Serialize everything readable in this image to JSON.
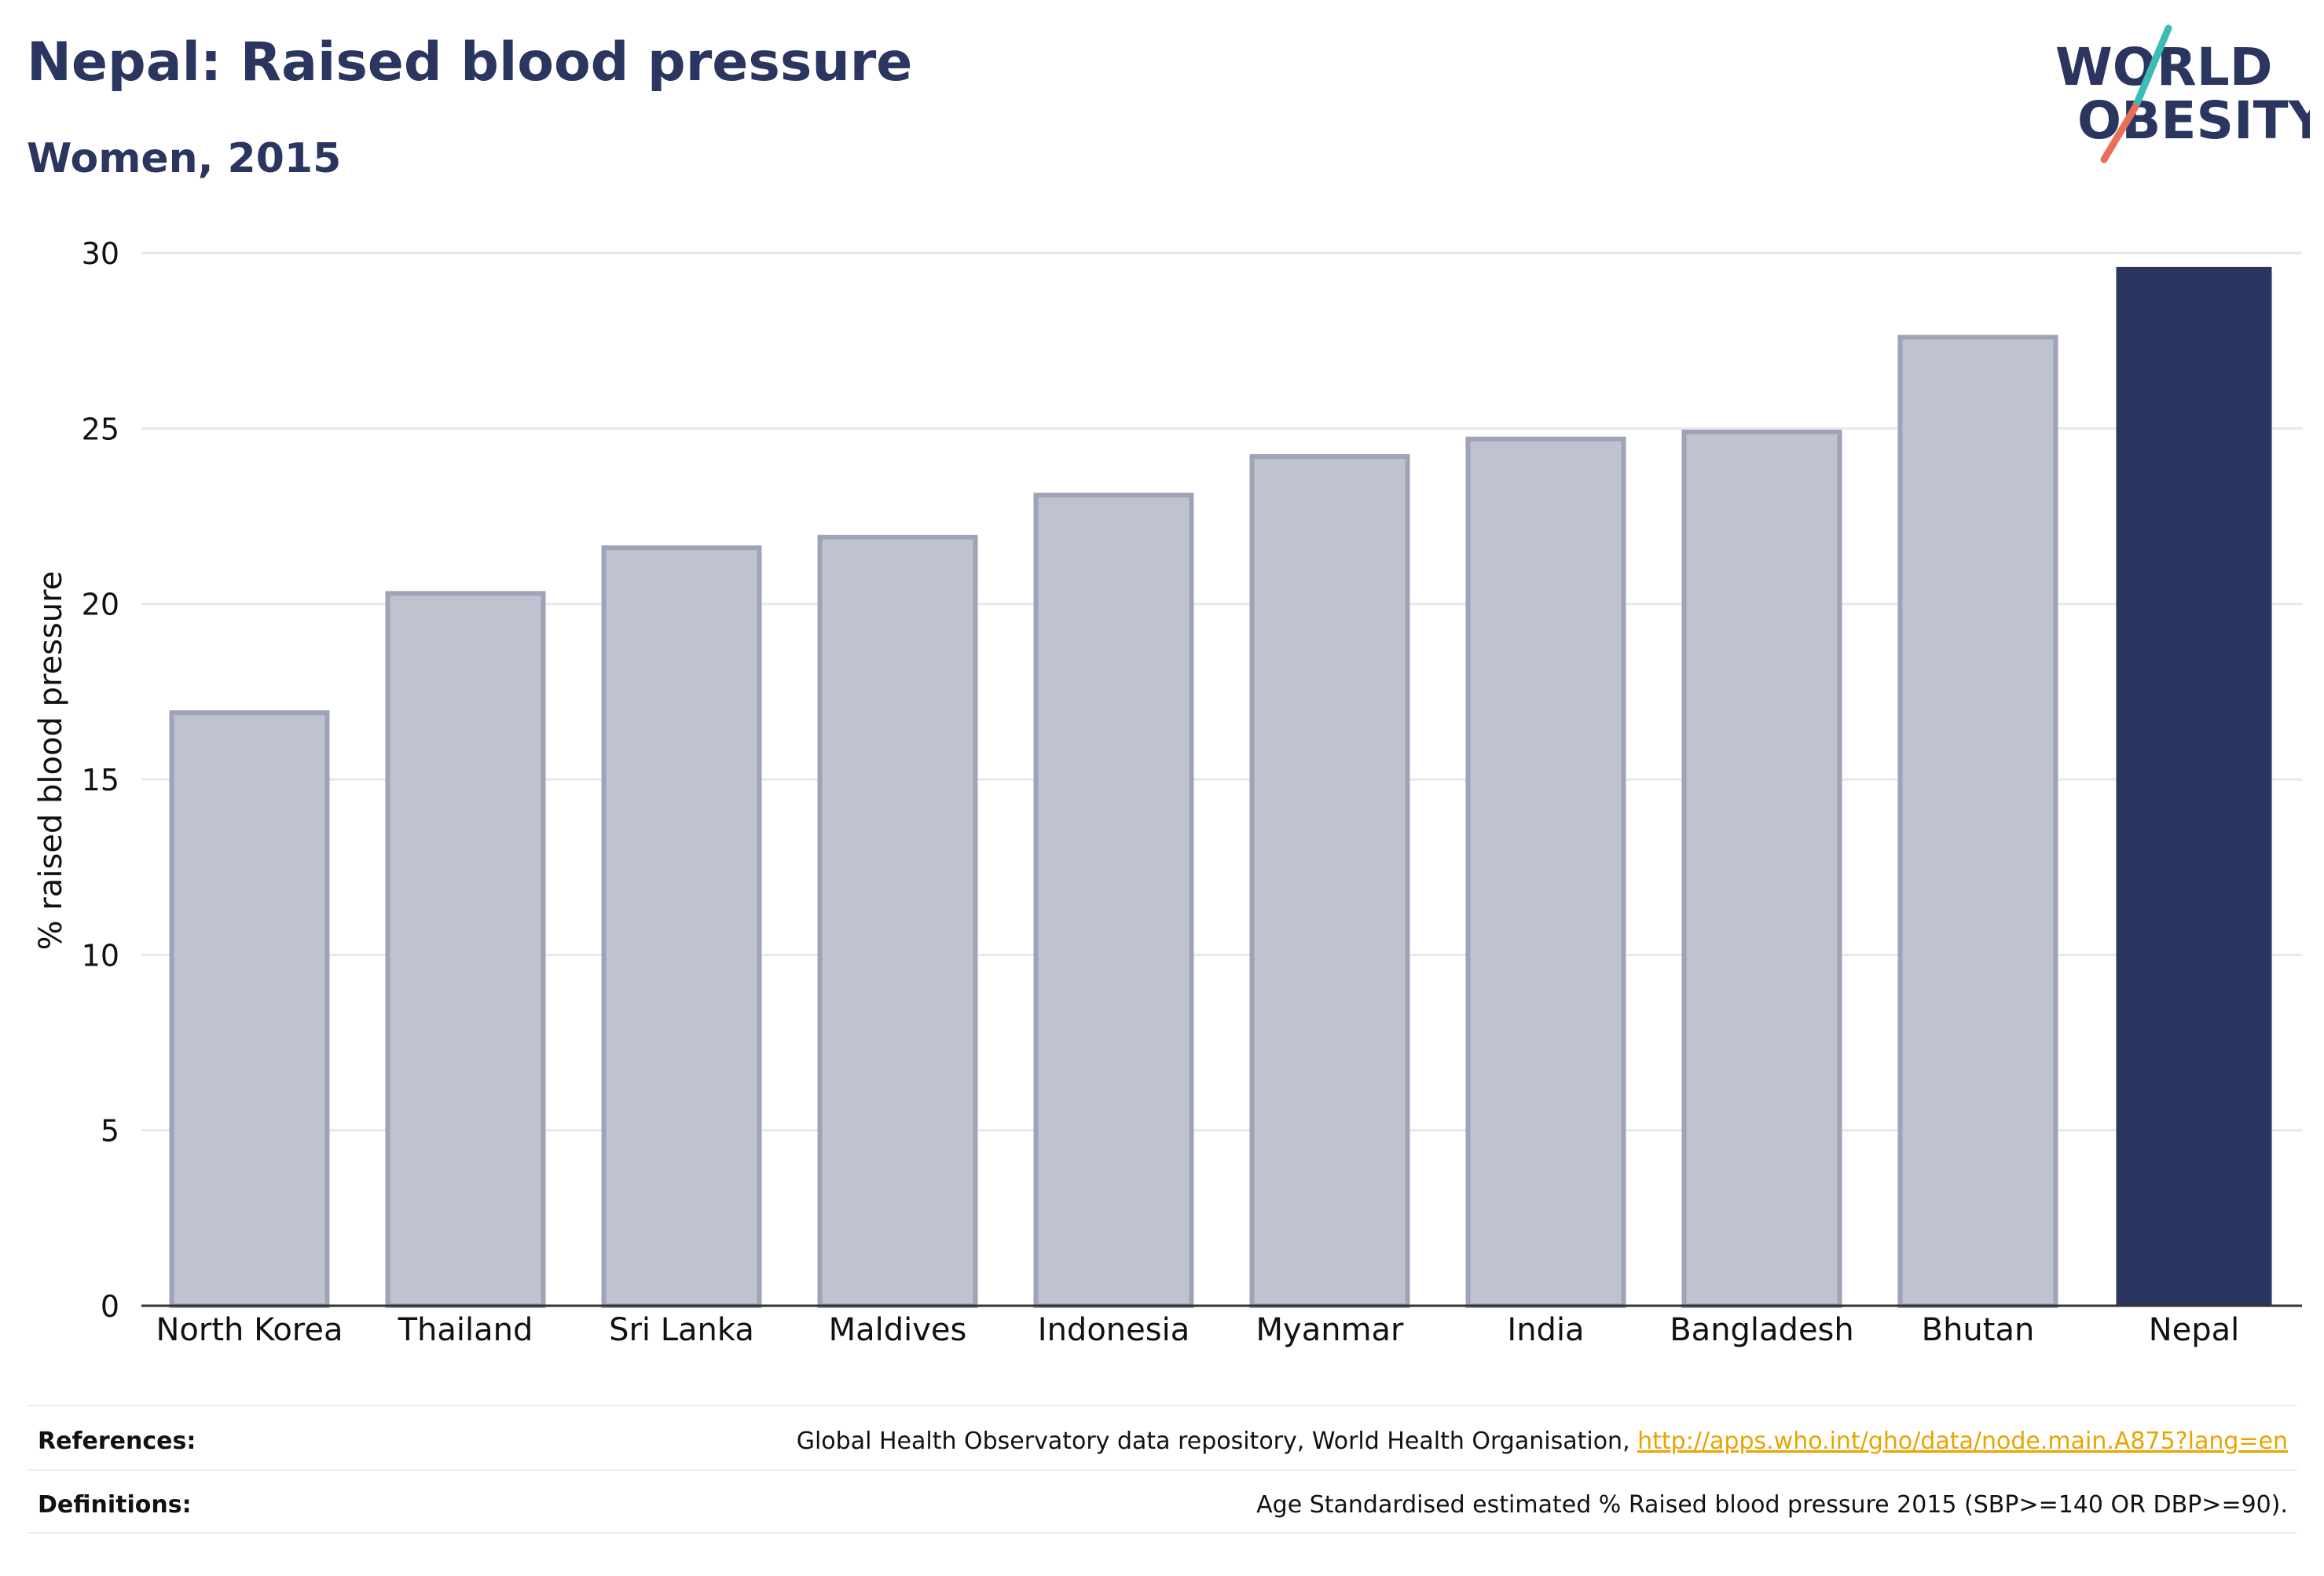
{
  "header": {
    "title": "Nepal: Raised blood pressure",
    "subtitle": "Women, 2015"
  },
  "logo": {
    "line1": "WORLD",
    "line2": "OBESITY"
  },
  "colors": {
    "highlight_bar": "#2a3560",
    "other_bar": "#bfc2cf",
    "other_bar_stroke": "#9fa3b8",
    "logo_slash_top": "#3bbcb4",
    "logo_slash_bottom": "#e8705a",
    "link": "#e8a400"
  },
  "chart_data": {
    "type": "bar",
    "title": "Nepal: Raised blood pressure",
    "subtitle": "Women, 2015",
    "xlabel": "",
    "ylabel": "% raised blood pressure",
    "categories": [
      "North Korea",
      "Thailand",
      "Sri Lanka",
      "Maldives",
      "Indonesia",
      "Myanmar",
      "India",
      "Bangladesh",
      "Bhutan",
      "Nepal"
    ],
    "values": [
      16.9,
      20.3,
      21.6,
      21.9,
      23.1,
      24.2,
      24.7,
      24.9,
      27.6,
      29.6
    ],
    "highlight": "Nepal",
    "ylim": [
      0,
      30
    ],
    "yticks": [
      0,
      5,
      10,
      15,
      20,
      25,
      30
    ],
    "grid": true,
    "legend": "none"
  },
  "footer": {
    "references_label": "References:",
    "references_text": "Global Health Observatory data repository, World Health Organisation, ",
    "references_link": "http://apps.who.int/gho/data/node.main.A875?lang=en",
    "definitions_label": "Definitions:",
    "definitions_text": "Age Standardised estimated % Raised blood pressure 2015 (SBP>=140 OR DBP>=90)."
  }
}
